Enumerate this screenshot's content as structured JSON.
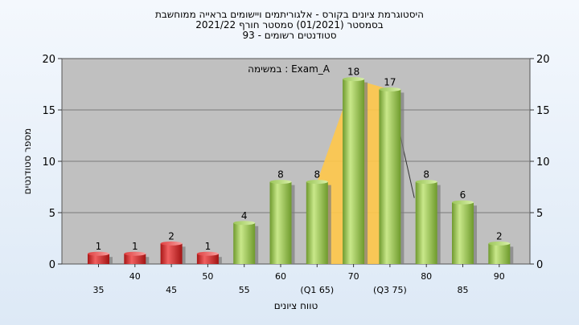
{
  "chart_data": {
    "type": "bar",
    "title_lines": [
      "היסטוגרמת ציונים בקורס - אלגוריתמים ויישומים בראייה ממוחשבת",
      "בסמסטר (01/2021) סמסטר חורף 2021/22",
      "סטודנטים רשומים - 93"
    ],
    "annotation": "במשימה : Exam_A",
    "ylabel": "מספר סטודנטים",
    "xlabel": "טווח ציונים",
    "ylim": [
      0,
      20
    ],
    "yticks": [
      0,
      5,
      10,
      15,
      20
    ],
    "categories": [
      "35",
      "40",
      "45",
      "50",
      "55",
      "60",
      "(Q1 65)",
      "70",
      "(Q3 75)",
      "80",
      "85",
      "90"
    ],
    "values": [
      1,
      1,
      2,
      1,
      4,
      8,
      8,
      18,
      17,
      8,
      6,
      2
    ],
    "bar_colors": [
      "#d42a2a",
      "#d42a2a",
      "#d42a2a",
      "#d42a2a",
      "#8fc04a",
      "#8fc04a",
      "#8fc04a",
      "#8fc04a",
      "#8fc04a",
      "#8fc04a",
      "#8fc04a",
      "#8fc04a"
    ],
    "quartile_area": {
      "color": "#ffc84a",
      "x_from": "(Q1 65)",
      "x_to": "(Q3 75)"
    },
    "grid": "horizontal",
    "plot_background": "#c0c0c0"
  }
}
